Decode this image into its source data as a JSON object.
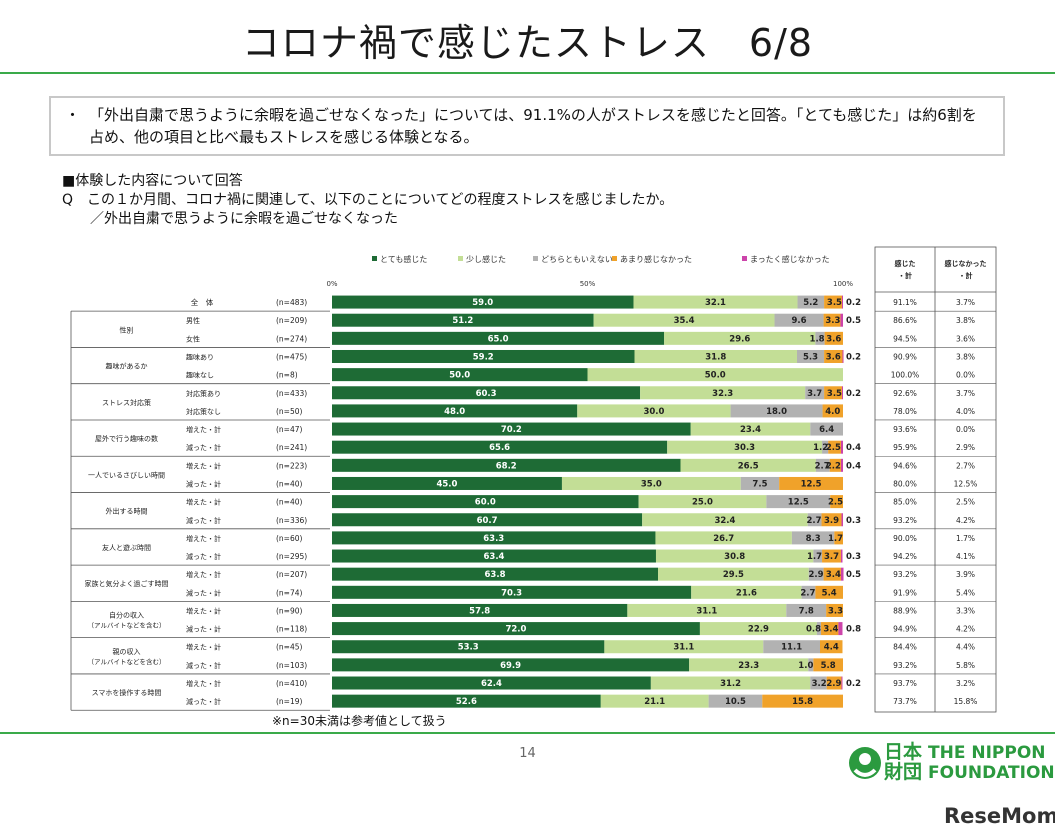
{
  "page": {
    "title": "コロナ禍で感じたストレス　6/8",
    "summary": "「外出自粛で思うように余暇を過ごせなくなった」については、91.1%の人がストレスを感じたと回答。「とても感じた」は約6割を占め、他の項目と比べ最もストレスを感じる体験となる。",
    "bullet": "・",
    "q_heading": "■体験した内容について回答",
    "q_line1": "Q　この１か月間、コロナ禍に関連して、以下のことについてどの程度ストレスを感じましたか。",
    "q_line2": "／外出自粛で思うように余暇を過ごせなくなった",
    "note": "※n=30未満は参考値として扱う",
    "page_number": "14",
    "logo_jp": "日本財団",
    "logo_en_1": "THE NIPPON",
    "logo_en_2": "FOUNDATION",
    "watermark": "ReseMom",
    "colors": [
      "#1e6b35",
      "#c3de96",
      "#b2b2b2",
      "#f0a22a",
      "#cc44aa"
    ]
  },
  "chart_data": {
    "type": "bar",
    "orientation": "horizontal-stacked-100",
    "axis_ticks": [
      "0%",
      "50%",
      "100%"
    ],
    "series_names": [
      "とても感じた",
      "少し感じた",
      "どちらともいえない",
      "あまり感じなかった",
      "まったく感じなかった"
    ],
    "table_headers": [
      "感じた・計",
      "感じなかった・計"
    ],
    "rows": [
      {
        "group": "全　体",
        "label": "",
        "n": "(n=483)",
        "values": [
          59.0,
          32.1,
          5.2,
          3.5,
          0.2
        ],
        "labels": [
          "59.0",
          "32.1",
          "5.2",
          "3.5",
          "0.2"
        ],
        "felt": "91.1%",
        "not_felt": "3.7%"
      },
      {
        "group": "性別",
        "label": "男性",
        "n": "(n=209)",
        "values": [
          51.2,
          35.4,
          9.6,
          3.3,
          0.5
        ],
        "labels": [
          "51.2",
          "35.4",
          "9.6",
          "3.3",
          "0.5"
        ],
        "felt": "86.6%",
        "not_felt": "3.8%"
      },
      {
        "group": "",
        "label": "女性",
        "n": "(n=274)",
        "values": [
          65.0,
          29.6,
          1.8,
          3.6,
          0.0
        ],
        "labels": [
          "65.0",
          "29.6",
          "1.8",
          "3.6",
          ""
        ],
        "felt": "94.5%",
        "not_felt": "3.6%"
      },
      {
        "group": "趣味があるか",
        "label": "趣味あり",
        "n": "(n=475)",
        "values": [
          59.2,
          31.8,
          5.3,
          3.6,
          0.2
        ],
        "labels": [
          "59.2",
          "31.8",
          "5.3",
          "3.6",
          "0.2"
        ],
        "felt": "90.9%",
        "not_felt": "3.8%"
      },
      {
        "group": "",
        "label": "趣味なし",
        "n": "(n=8)",
        "values": [
          50.0,
          50.0,
          0.0,
          0.0,
          0.0
        ],
        "labels": [
          "50.0",
          "50.0",
          "",
          "",
          ""
        ],
        "felt": "100.0%",
        "not_felt": "0.0%"
      },
      {
        "group": "ストレス対応策",
        "label": "対応策あり",
        "n": "(n=433)",
        "values": [
          60.3,
          32.3,
          3.7,
          3.5,
          0.2
        ],
        "labels": [
          "60.3",
          "32.3",
          "3.7",
          "3.5",
          "0.2"
        ],
        "felt": "92.6%",
        "not_felt": "3.7%"
      },
      {
        "group": "",
        "label": "対応策なし",
        "n": "(n=50)",
        "values": [
          48.0,
          30.0,
          18.0,
          4.0,
          0.0
        ],
        "labels": [
          "48.0",
          "30.0",
          "18.0",
          "4.0",
          ""
        ],
        "felt": "78.0%",
        "not_felt": "4.0%"
      },
      {
        "group": "屋外で行う趣味の数",
        "label": "増えた・計",
        "n": "(n=47)",
        "values": [
          70.2,
          23.4,
          6.4,
          0.0,
          0.0
        ],
        "labels": [
          "70.2",
          "23.4",
          "6.4",
          "",
          ""
        ],
        "felt": "93.6%",
        "not_felt": "0.0%"
      },
      {
        "group": "",
        "label": "減った・計",
        "n": "(n=241)",
        "values": [
          65.6,
          30.3,
          1.2,
          2.5,
          0.4
        ],
        "labels": [
          "65.6",
          "30.3",
          "1.2",
          "2.5",
          "0.4"
        ],
        "felt": "95.9%",
        "not_felt": "2.9%"
      },
      {
        "group": "一人でいるさびしい時間",
        "label": "増えた・計",
        "n": "(n=223)",
        "values": [
          68.2,
          26.5,
          2.7,
          2.2,
          0.4
        ],
        "labels": [
          "68.2",
          "26.5",
          "2.7",
          "2.2",
          "0.4"
        ],
        "felt": "94.6%",
        "not_felt": "2.7%"
      },
      {
        "group": "",
        "label": "減った・計",
        "n": "(n=40)",
        "values": [
          45.0,
          35.0,
          7.5,
          12.5,
          0.0
        ],
        "labels": [
          "45.0",
          "35.0",
          "7.5",
          "12.5",
          ""
        ],
        "felt": "80.0%",
        "not_felt": "12.5%"
      },
      {
        "group": "外出する時間",
        "label": "増えた・計",
        "n": "(n=40)",
        "values": [
          60.0,
          25.0,
          12.5,
          2.5,
          0.0
        ],
        "labels": [
          "60.0",
          "25.0",
          "12.5",
          "2.5",
          ""
        ],
        "felt": "85.0%",
        "not_felt": "2.5%"
      },
      {
        "group": "",
        "label": "減った・計",
        "n": "(n=336)",
        "values": [
          60.7,
          32.4,
          2.7,
          3.9,
          0.3
        ],
        "labels": [
          "60.7",
          "32.4",
          "2.7",
          "3.9",
          "0.3"
        ],
        "felt": "93.2%",
        "not_felt": "4.2%"
      },
      {
        "group": "友人と遊ぶ時間",
        "label": "増えた・計",
        "n": "(n=60)",
        "values": [
          63.3,
          26.7,
          8.3,
          1.7,
          0.0
        ],
        "labels": [
          "63.3",
          "26.7",
          "8.3",
          "1.7",
          ""
        ],
        "felt": "90.0%",
        "not_felt": "1.7%"
      },
      {
        "group": "",
        "label": "減った・計",
        "n": "(n=295)",
        "values": [
          63.4,
          30.8,
          1.7,
          3.7,
          0.3
        ],
        "labels": [
          "63.4",
          "30.8",
          "1.7",
          "3.7",
          "0.3"
        ],
        "felt": "94.2%",
        "not_felt": "4.1%"
      },
      {
        "group": "家族と気分よく過ごす時間",
        "label": "増えた・計",
        "n": "(n=207)",
        "values": [
          63.8,
          29.5,
          2.9,
          3.4,
          0.5
        ],
        "labels": [
          "63.8",
          "29.5",
          "2.9",
          "3.4",
          "0.5"
        ],
        "felt": "93.2%",
        "not_felt": "3.9%"
      },
      {
        "group": "",
        "label": "減った・計",
        "n": "(n=74)",
        "values": [
          70.3,
          21.6,
          2.7,
          5.4,
          0.0
        ],
        "labels": [
          "70.3",
          "21.6",
          "2.7",
          "5.4",
          ""
        ],
        "felt": "91.9%",
        "not_felt": "5.4%"
      },
      {
        "group": "自分の収入|（アルバイトなどを含む）",
        "label": "増えた・計",
        "n": "(n=90)",
        "values": [
          57.8,
          31.1,
          7.8,
          3.3,
          0.0
        ],
        "labels": [
          "57.8",
          "31.1",
          "7.8",
          "3.3",
          ""
        ],
        "felt": "88.9%",
        "not_felt": "3.3%"
      },
      {
        "group": "",
        "label": "減った・計",
        "n": "(n=118)",
        "values": [
          72.0,
          22.9,
          0.8,
          3.4,
          0.8
        ],
        "labels": [
          "72.0",
          "22.9",
          "0.8",
          "3.4",
          "0.8"
        ],
        "felt": "94.9%",
        "not_felt": "4.2%"
      },
      {
        "group": "親の収入|（アルバイトなどを含む）",
        "label": "増えた・計",
        "n": "(n=45)",
        "values": [
          53.3,
          31.1,
          11.1,
          4.4,
          0.0
        ],
        "labels": [
          "53.3",
          "31.1",
          "11.1",
          "4.4",
          ""
        ],
        "felt": "84.4%",
        "not_felt": "4.4%"
      },
      {
        "group": "",
        "label": "減った・計",
        "n": "(n=103)",
        "values": [
          69.9,
          23.3,
          1.0,
          5.8,
          0.0
        ],
        "labels": [
          "69.9",
          "23.3",
          "1.0",
          "5.8",
          ""
        ],
        "felt": "93.2%",
        "not_felt": "5.8%"
      },
      {
        "group": "スマホを操作する時間",
        "label": "増えた・計",
        "n": "(n=410)",
        "values": [
          62.4,
          31.2,
          3.2,
          2.9,
          0.2
        ],
        "labels": [
          "62.4",
          "31.2",
          "3.2",
          "2.9",
          "0.2"
        ],
        "felt": "93.7%",
        "not_felt": "3.2%"
      },
      {
        "group": "",
        "label": "減った・計",
        "n": "(n=19)",
        "values": [
          52.6,
          21.1,
          10.5,
          15.8,
          0.0
        ],
        "labels": [
          "52.6",
          "21.1",
          "10.5",
          "15.8",
          ""
        ],
        "felt": "73.7%",
        "not_felt": "15.8%"
      }
    ]
  }
}
